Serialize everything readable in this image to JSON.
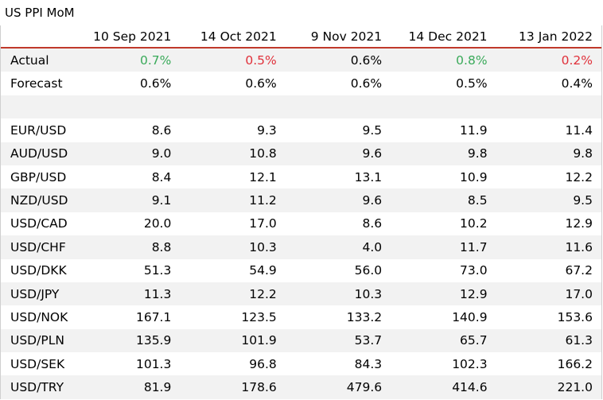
{
  "title": "US PPI MoM",
  "columns": [
    "10 Sep 2021",
    "14 Oct 2021",
    "9 Nov 2021",
    "14 Dec 2021",
    "13 Jan 2022"
  ],
  "colors": {
    "positive": "#3aaa5a",
    "negative": "#e0303a",
    "accent_line": "#c0392b"
  },
  "actual": {
    "label": "Actual",
    "values": [
      "0.7%",
      "0.5%",
      "0.6%",
      "0.8%",
      "0.2%"
    ],
    "tone": [
      "pos",
      "neg",
      "neutral",
      "pos",
      "neg"
    ]
  },
  "forecast": {
    "label": "Forecast",
    "values": [
      "0.6%",
      "0.6%",
      "0.6%",
      "0.5%",
      "0.4%"
    ]
  },
  "pairs": [
    {
      "label": "EUR/USD",
      "values": [
        "8.6",
        "9.3",
        "9.5",
        "11.9",
        "11.4"
      ]
    },
    {
      "label": "AUD/USD",
      "values": [
        "9.0",
        "10.8",
        "9.6",
        "9.8",
        "9.8"
      ]
    },
    {
      "label": "GBP/USD",
      "values": [
        "8.4",
        "12.1",
        "13.1",
        "10.9",
        "12.2"
      ]
    },
    {
      "label": "NZD/USD",
      "values": [
        "9.1",
        "11.2",
        "9.6",
        "8.5",
        "9.5"
      ]
    },
    {
      "label": "USD/CAD",
      "values": [
        "20.0",
        "17.0",
        "8.6",
        "10.2",
        "12.9"
      ]
    },
    {
      "label": "USD/CHF",
      "values": [
        "8.8",
        "10.3",
        "4.0",
        "11.7",
        "11.6"
      ]
    },
    {
      "label": "USD/DKK",
      "values": [
        "51.3",
        "54.9",
        "56.0",
        "73.0",
        "67.2"
      ]
    },
    {
      "label": "USD/JPY",
      "values": [
        "11.3",
        "12.2",
        "10.3",
        "12.9",
        "17.0"
      ]
    },
    {
      "label": "USD/NOK",
      "values": [
        "167.1",
        "123.5",
        "133.2",
        "140.9",
        "153.6"
      ]
    },
    {
      "label": "USD/PLN",
      "values": [
        "135.9",
        "101.9",
        "53.7",
        "65.7",
        "61.3"
      ]
    },
    {
      "label": "USD/SEK",
      "values": [
        "101.3",
        "96.8",
        "84.3",
        "102.3",
        "166.2"
      ]
    },
    {
      "label": "USD/TRY",
      "values": [
        "81.9",
        "178.6",
        "479.6",
        "414.6",
        "221.0"
      ]
    }
  ]
}
